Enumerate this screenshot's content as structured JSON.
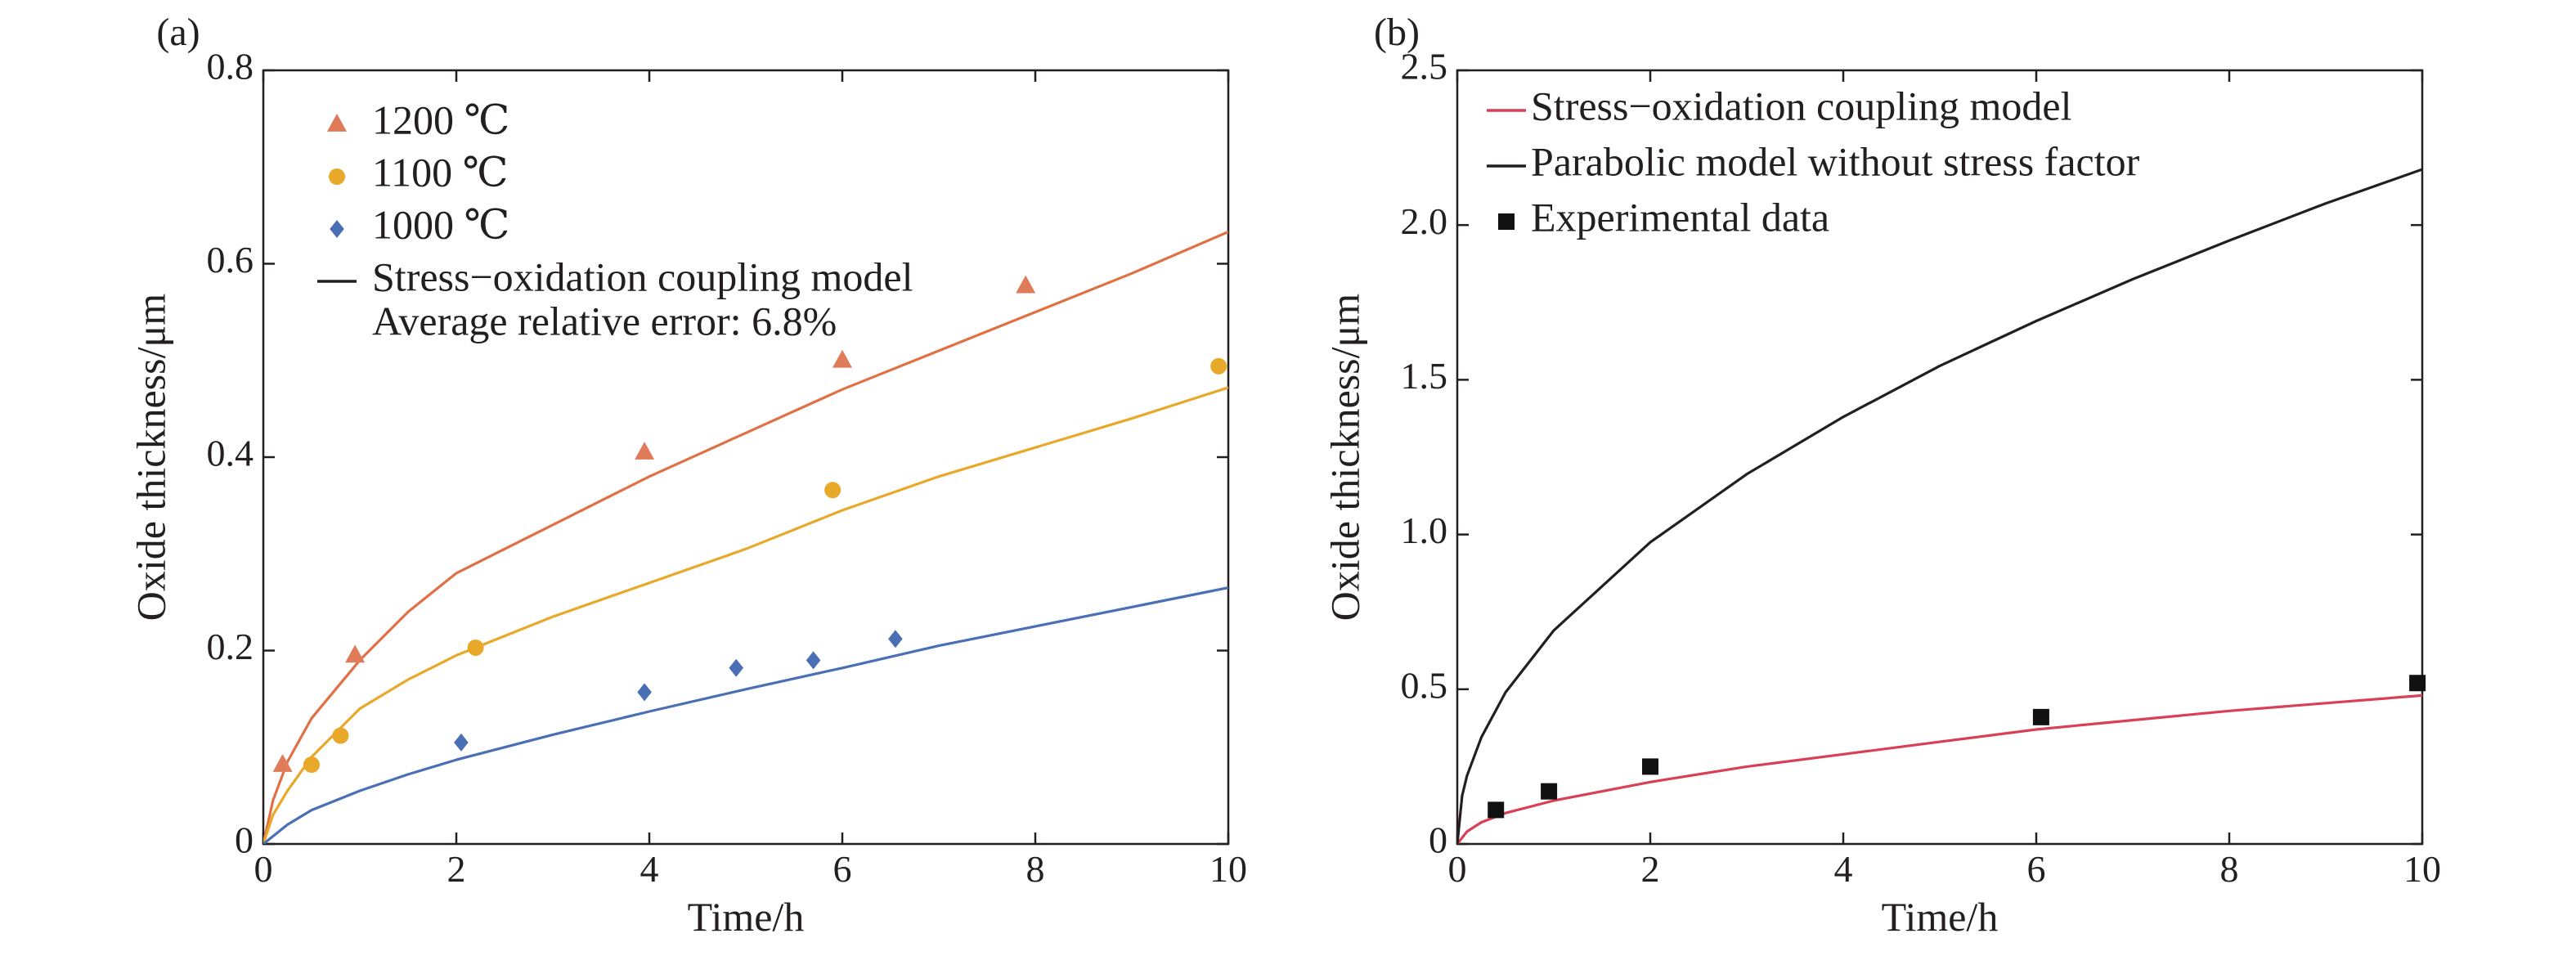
{
  "chart_data": [
    {
      "type": "line",
      "panel_label": "(a)",
      "xlabel": "Time/h",
      "ylabel": "Oxide thickness/μm",
      "xlim": [
        0,
        10
      ],
      "ylim": [
        0,
        0.8
      ],
      "xticks": [
        0,
        2,
        4,
        6,
        8,
        10
      ],
      "xtick_labels": [
        "0",
        "2",
        "4",
        "6",
        "8",
        "10"
      ],
      "yticks": [
        0,
        0.2,
        0.4,
        0.6,
        0.8
      ],
      "ytick_labels": [
        "0",
        "0.2",
        "0.4",
        "0.6",
        "0.8"
      ],
      "grid": false,
      "legend_position": "top-left",
      "series": [
        {
          "name": "1200 ℃",
          "kind": "scatter",
          "marker": "triangle",
          "color": "#e07b5a",
          "x": [
            0.2,
            0.95,
            3.95,
            6.0,
            7.9
          ],
          "y": [
            0.082,
            0.195,
            0.405,
            0.5,
            0.577
          ]
        },
        {
          "name": "1100 ℃",
          "kind": "scatter",
          "marker": "circle",
          "color": "#e8a82a",
          "x": [
            0.5,
            0.8,
            2.2,
            5.9,
            9.9
          ],
          "y": [
            0.082,
            0.112,
            0.203,
            0.366,
            0.494
          ]
        },
        {
          "name": "1000 ℃",
          "kind": "scatter",
          "marker": "diamond",
          "color": "#4a6fb5",
          "x": [
            2.05,
            3.95,
            4.9,
            5.7,
            6.55
          ],
          "y": [
            0.105,
            0.157,
            0.182,
            0.19,
            0.212
          ]
        },
        {
          "name": "",
          "kind": "line",
          "color": "#e07045",
          "x": [
            0,
            0.1,
            0.25,
            0.5,
            1,
            1.5,
            2,
            3,
            4,
            5,
            6,
            7,
            8,
            9,
            10
          ],
          "y": [
            0,
            0.045,
            0.085,
            0.13,
            0.19,
            0.24,
            0.28,
            0.33,
            0.38,
            0.425,
            0.47,
            0.51,
            0.55,
            0.59,
            0.633
          ]
        },
        {
          "name": "",
          "kind": "line",
          "color": "#e8a82a",
          "x": [
            0,
            0.1,
            0.25,
            0.5,
            1,
            1.5,
            2,
            3,
            4,
            5,
            6,
            7,
            8,
            9,
            10
          ],
          "y": [
            0,
            0.03,
            0.055,
            0.09,
            0.14,
            0.17,
            0.195,
            0.235,
            0.27,
            0.305,
            0.345,
            0.38,
            0.41,
            0.44,
            0.472
          ]
        },
        {
          "name": "",
          "kind": "line",
          "color": "#4a6fb5",
          "x": [
            0,
            0.25,
            0.5,
            1,
            1.5,
            2,
            3,
            4,
            5,
            6,
            7,
            8,
            9,
            10
          ],
          "y": [
            0,
            0.02,
            0.035,
            0.055,
            0.072,
            0.087,
            0.113,
            0.137,
            0.16,
            0.182,
            0.205,
            0.225,
            0.245,
            0.265
          ]
        }
      ],
      "legend": [
        {
          "label": "1200 ℃",
          "marker": "triangle",
          "color": "#e07b5a"
        },
        {
          "label": "1100 ℃",
          "marker": "circle",
          "color": "#e8a82a"
        },
        {
          "label": "1000 ℃",
          "marker": "diamond",
          "color": "#4a6fb5"
        },
        {
          "label": "Stress−oxidation coupling model",
          "marker": "line",
          "color": "#231f20"
        }
      ],
      "annotation": "Average relative error: 6.8%"
    },
    {
      "type": "line",
      "panel_label": "(b)",
      "xlabel": "Time/h",
      "ylabel": "Oxide thickness/μm",
      "xlim": [
        0,
        10
      ],
      "ylim": [
        0,
        2.5
      ],
      "xticks": [
        0,
        2,
        4,
        6,
        8,
        10
      ],
      "xtick_labels": [
        "0",
        "2",
        "4",
        "6",
        "8",
        "10"
      ],
      "yticks": [
        0,
        0.5,
        1.0,
        1.5,
        2.0,
        2.5
      ],
      "ytick_labels": [
        "0",
        "0.5",
        "1.0",
        "1.5",
        "2.0",
        "2.5"
      ],
      "grid": false,
      "legend_position": "top-left",
      "series": [
        {
          "name": "Stress−oxidation coupling model",
          "kind": "line",
          "color": "#d94055",
          "x": [
            0,
            0.1,
            0.25,
            0.5,
            1,
            2,
            3,
            4,
            5,
            6,
            7,
            8,
            9,
            10
          ],
          "y": [
            0,
            0.04,
            0.07,
            0.1,
            0.14,
            0.2,
            0.25,
            0.29,
            0.33,
            0.37,
            0.4,
            0.43,
            0.455,
            0.48
          ]
        },
        {
          "name": "Parabolic model without stress factor",
          "kind": "line",
          "color": "#231f20",
          "x": [
            0,
            0.05,
            0.1,
            0.25,
            0.5,
            1,
            2,
            3,
            4,
            5,
            6,
            7,
            8,
            9,
            10
          ],
          "y": [
            0,
            0.155,
            0.22,
            0.345,
            0.49,
            0.69,
            0.975,
            1.195,
            1.38,
            1.545,
            1.69,
            1.825,
            1.95,
            2.07,
            2.18
          ]
        },
        {
          "name": "Experimental data",
          "kind": "scatter",
          "marker": "square",
          "color": "#111111",
          "x": [
            0.4,
            0.95,
            2.0,
            6.05,
            9.95
          ],
          "y": [
            0.11,
            0.17,
            0.25,
            0.41,
            0.52
          ]
        }
      ],
      "legend": [
        {
          "label": "Stress−oxidation coupling model",
          "marker": "line",
          "color": "#d94055"
        },
        {
          "label": "Parabolic model without stress factor",
          "marker": "line",
          "color": "#231f20"
        },
        {
          "label": "Experimental data",
          "marker": "square",
          "color": "#111111"
        }
      ]
    }
  ]
}
